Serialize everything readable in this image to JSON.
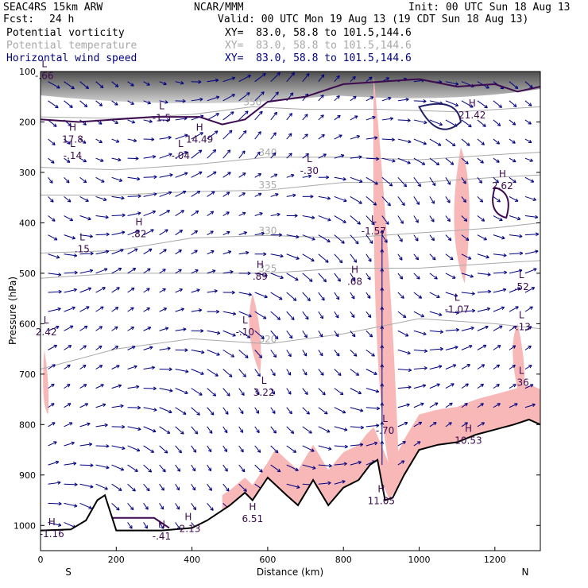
{
  "header": {
    "model": "SEAC4RS 15km ARW",
    "org": "NCAR/MMM",
    "init": "Init: 00 UTC Sun 18 Aug 13",
    "fcst_label": "Fcst:",
    "fcst_value": "24 h",
    "valid": "Valid: 00 UTC Mon 19 Aug 13 (19 CDT Sun 18 Aug 13)"
  },
  "fields": [
    {
      "name": "Potential vorticity",
      "xy": "XY=  83.0, 58.8 to 101.5,144.6",
      "color": "#000000"
    },
    {
      "name": "Potential temperature",
      "xy": "XY=  83.0, 58.8 to 101.5,144.6",
      "color": "#a8a8a8"
    },
    {
      "name": "Horizontal wind speed",
      "xy": "XY=  83.0, 58.8 to 101.5,144.6",
      "color": "#000080"
    }
  ],
  "chart_data": {
    "type": "cross-section",
    "xlabel": "Distance (km)",
    "ylabel": "Pressure (hPa)",
    "xlim": [
      0,
      1320
    ],
    "ylim": [
      1050,
      100
    ],
    "x_ticks": [
      0,
      200,
      400,
      600,
      800,
      1000,
      1200
    ],
    "y_ticks": [
      100,
      200,
      300,
      400,
      500,
      600,
      700,
      800,
      900,
      1000
    ],
    "x_endpoints": [
      "S",
      "N"
    ],
    "colors": {
      "pv_contour": "#3c0a50",
      "theta_contour": "#a8a8a8",
      "wind": "#000080",
      "pv_fill": "#f9b8b8",
      "pv_high": "#555555",
      "terrain": "#000000"
    },
    "terrain": [
      [
        0,
        1010
      ],
      [
        80,
        1008
      ],
      [
        120,
        990
      ],
      [
        150,
        950
      ],
      [
        170,
        940
      ],
      [
        200,
        1010
      ],
      [
        260,
        1010
      ],
      [
        320,
        1010
      ],
      [
        400,
        1005
      ],
      [
        440,
        990
      ],
      [
        500,
        960
      ],
      [
        540,
        935
      ],
      [
        560,
        950
      ],
      [
        600,
        905
      ],
      [
        650,
        940
      ],
      [
        680,
        960
      ],
      [
        720,
        910
      ],
      [
        760,
        960
      ],
      [
        800,
        925
      ],
      [
        840,
        910
      ],
      [
        870,
        880
      ],
      [
        890,
        870
      ],
      [
        910,
        950
      ],
      [
        930,
        945
      ],
      [
        960,
        900
      ],
      [
        1000,
        850
      ],
      [
        1050,
        840
      ],
      [
        1100,
        835
      ],
      [
        1150,
        820
      ],
      [
        1200,
        810
      ],
      [
        1250,
        800
      ],
      [
        1290,
        790
      ],
      [
        1320,
        800
      ]
    ],
    "theta_contours": [
      {
        "label": "350",
        "points": [
          [
            0,
            190
          ],
          [
            200,
            193
          ],
          [
            400,
            185
          ],
          [
            560,
            170
          ],
          [
            700,
            175
          ],
          [
            900,
            175
          ],
          [
            1100,
            180
          ],
          [
            1320,
            170
          ]
        ]
      },
      {
        "label": "340",
        "points": [
          [
            0,
            290
          ],
          [
            200,
            295
          ],
          [
            400,
            285
          ],
          [
            600,
            270
          ],
          [
            800,
            270
          ],
          [
            1000,
            275
          ],
          [
            1200,
            265
          ],
          [
            1320,
            260
          ]
        ]
      },
      {
        "label": "335",
        "points": [
          [
            0,
            345
          ],
          [
            200,
            345
          ],
          [
            400,
            338
          ],
          [
            600,
            335
          ],
          [
            800,
            320
          ],
          [
            1000,
            320
          ],
          [
            1200,
            310
          ],
          [
            1320,
            305
          ]
        ]
      },
      {
        "label": "330",
        "points": [
          [
            0,
            460
          ],
          [
            200,
            455
          ],
          [
            400,
            430
          ],
          [
            600,
            425
          ],
          [
            800,
            430
          ],
          [
            1000,
            420
          ],
          [
            1200,
            410
          ],
          [
            1320,
            400
          ]
        ]
      },
      {
        "label": "325",
        "points": [
          [
            0,
            510
          ],
          [
            200,
            500
          ],
          [
            400,
            500
          ],
          [
            600,
            500
          ],
          [
            800,
            490
          ],
          [
            1000,
            490
          ],
          [
            1200,
            480
          ],
          [
            1320,
            475
          ]
        ]
      },
      {
        "label": "320",
        "points": [
          [
            0,
            690
          ],
          [
            200,
            650
          ],
          [
            400,
            630
          ],
          [
            600,
            640
          ],
          [
            800,
            620
          ],
          [
            1000,
            590
          ],
          [
            1200,
            600
          ],
          [
            1320,
            610
          ]
        ]
      }
    ],
    "annotations": [
      {
        "kind": "L",
        "value": "-.66",
        "x": 10,
        "p": 112
      },
      {
        "kind": "L",
        "value": "-1.5",
        "x": 320,
        "p": 195
      },
      {
        "kind": "H",
        "value": "17.8",
        "x": 85,
        "p": 238
      },
      {
        "kind": "L",
        "value": "-.14",
        "x": 85,
        "p": 270
      },
      {
        "kind": "H",
        "value": "14.49",
        "x": 420,
        "p": 238
      },
      {
        "kind": "L",
        "value": "-.04",
        "x": 370,
        "p": 270
      },
      {
        "kind": "L",
        "value": "-.30",
        "x": 710,
        "p": 300
      },
      {
        "kind": "H",
        "value": "21.42",
        "x": 1140,
        "p": 190
      },
      {
        "kind": "H",
        "value": "2.62",
        "x": 1220,
        "p": 330
      },
      {
        "kind": "H",
        "value": ".82",
        "x": 260,
        "p": 425
      },
      {
        "kind": "L",
        "value": ".15",
        "x": 110,
        "p": 455
      },
      {
        "kind": "L",
        "value": "-1.57",
        "x": 880,
        "p": 420
      },
      {
        "kind": "H",
        "value": ".89",
        "x": 580,
        "p": 510
      },
      {
        "kind": "H",
        "value": ".68",
        "x": 830,
        "p": 520
      },
      {
        "kind": "L",
        "value": ".52",
        "x": 1270,
        "p": 530
      },
      {
        "kind": "L",
        "value": "-1.07",
        "x": 1100,
        "p": 575
      },
      {
        "kind": "L",
        "value": "2.42",
        "x": 15,
        "p": 620
      },
      {
        "kind": "L",
        "value": "-.10",
        "x": 540,
        "p": 620
      },
      {
        "kind": "L",
        "value": "-.13",
        "x": 1270,
        "p": 610
      },
      {
        "kind": "L",
        "value": ".36",
        "x": 1270,
        "p": 720
      },
      {
        "kind": "L",
        "value": "3.22",
        "x": 590,
        "p": 740
      },
      {
        "kind": "L",
        "value": "-.70",
        "x": 910,
        "p": 815
      },
      {
        "kind": "H",
        "value": "10.53",
        "x": 1130,
        "p": 835
      },
      {
        "kind": "H",
        "value": "11.05",
        "x": 900,
        "p": 955
      },
      {
        "kind": "H",
        "value": "6.51",
        "x": 560,
        "p": 990
      },
      {
        "kind": "H",
        "value": "-1.16",
        "x": 30,
        "p": 1020
      },
      {
        "kind": "H",
        "value": "-.41",
        "x": 320,
        "p": 1025
      },
      {
        "kind": "H",
        "value": "-2.13",
        "x": 390,
        "p": 1010
      }
    ]
  }
}
